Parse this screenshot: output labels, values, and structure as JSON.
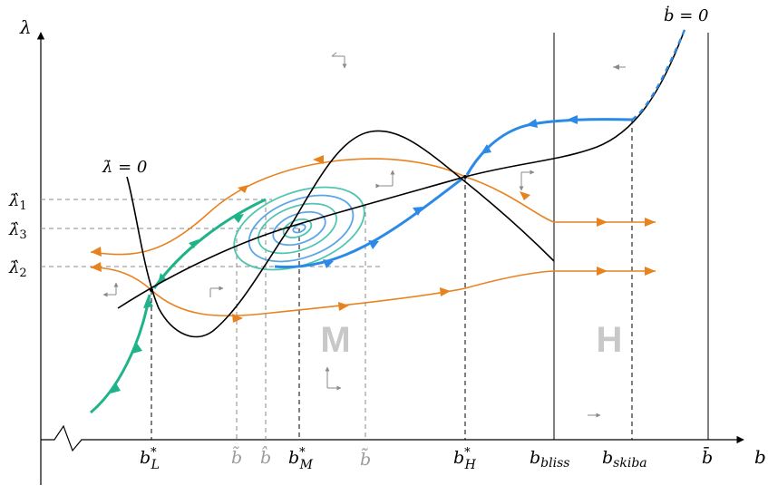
{
  "axes": {
    "x_label": "b",
    "y_label": "λ"
  },
  "curves": {
    "lambda_dot_label": "λ̇ = 0",
    "b_dot_label": "ḃ = 0"
  },
  "y_ticks": [
    {
      "symbol": "λ̂",
      "index": "1"
    },
    {
      "symbol": "λ̂",
      "index": "3"
    },
    {
      "symbol": "λ̂",
      "index": "2"
    }
  ],
  "x_ticks": [
    {
      "symbol": "b",
      "sup": "*",
      "sub": "L"
    },
    {
      "symbol": "b̃",
      "sup": "",
      "sub": ""
    },
    {
      "symbol": "b̂",
      "sup": "",
      "sub": ""
    },
    {
      "symbol": "b",
      "sup": "*",
      "sub": "M"
    },
    {
      "symbol": "b̃̃",
      "sup": "",
      "sub": ""
    },
    {
      "symbol": "b",
      "sup": "*",
      "sub": "H"
    },
    {
      "symbol": "b",
      "sup": "",
      "sub": "bliss"
    },
    {
      "symbol": "b",
      "sup": "",
      "sub": "skiba"
    },
    {
      "symbol": "b̄",
      "sup": "",
      "sub": ""
    }
  ],
  "regions": {
    "middle": "M",
    "high": "H"
  },
  "colors": {
    "orange": "#e8821e",
    "green": "#1fb38a",
    "blue": "#2b8ae6",
    "cycle_teal": "#4fc6b0",
    "cycle_blue": "#5aa6e8",
    "gray": "#9a9a9a"
  }
}
